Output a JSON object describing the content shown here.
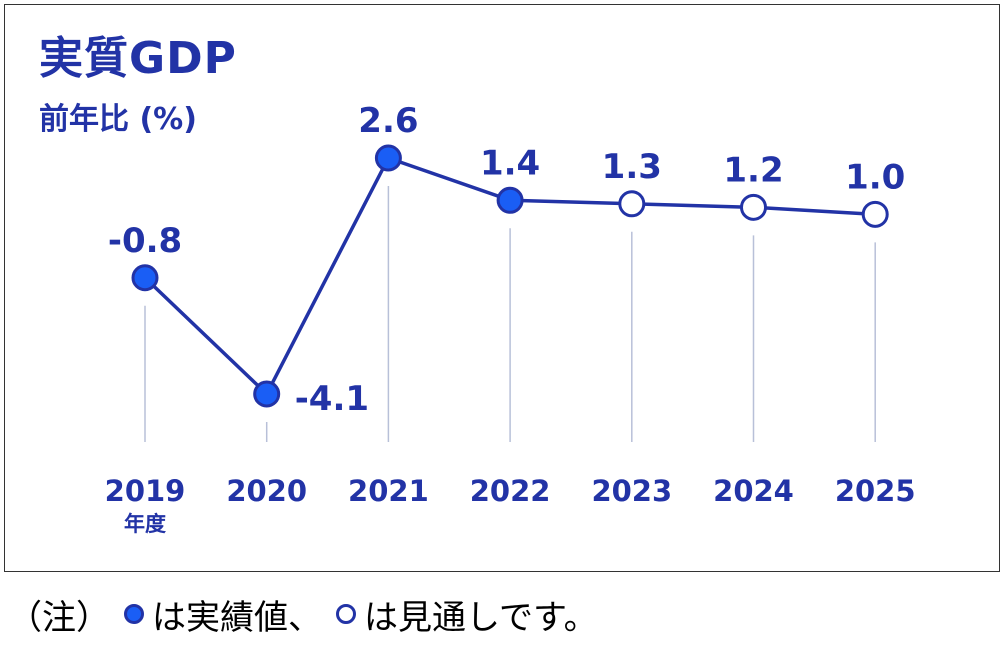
{
  "chart_data": {
    "type": "line",
    "title": "実質GDP",
    "subtitle": "前年比 (%)",
    "categories": [
      "2019",
      "2020",
      "2021",
      "2022",
      "2023",
      "2024",
      "2025"
    ],
    "category_sublabels": [
      "年度",
      "",
      "",
      "",
      "",
      "",
      ""
    ],
    "values": [
      -0.8,
      -4.1,
      2.6,
      1.4,
      1.3,
      1.2,
      1.0
    ],
    "value_labels": [
      "-0.8",
      "-4.1",
      "2.6",
      "1.4",
      "1.3",
      "1.2",
      "1.0"
    ],
    "point_kind": [
      "actual",
      "actual",
      "actual",
      "actual",
      "forecast",
      "forecast",
      "forecast"
    ],
    "grid": false,
    "xlabel": "",
    "ylabel": "",
    "colors": {
      "line": "#2233a6",
      "actual_fill": "#1a5ef5",
      "forecast_fill": "#ffffff",
      "text": "#2233a6",
      "drop_line": "#b8c0d8"
    }
  },
  "note": {
    "prefix": "（注）",
    "actual_text": "は実績値、",
    "forecast_text": "は見通しです。"
  }
}
